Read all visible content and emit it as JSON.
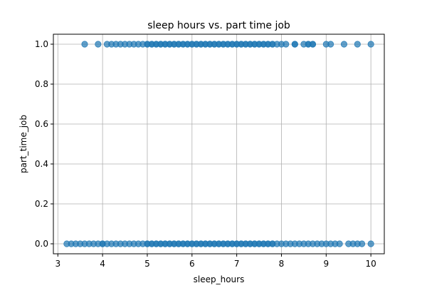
{
  "chart_data": {
    "type": "scatter",
    "title": "sleep hours vs. part time job",
    "xlabel": "sleep_hours",
    "ylabel": "part_time_job",
    "xlim": [
      2.9,
      10.3
    ],
    "ylim": [
      -0.05,
      1.05
    ],
    "xticks": [
      "3",
      "4",
      "5",
      "6",
      "7",
      "8",
      "9",
      "10"
    ],
    "yticks": [
      "0.0",
      "0.2",
      "0.4",
      "0.6",
      "0.8",
      "1.0"
    ],
    "grid": true,
    "marker_color": "#1f77b4",
    "series": [
      {
        "x": [
          3.6,
          3.9,
          4.1,
          4.2,
          4.3,
          4.4,
          4.5,
          4.6,
          4.7,
          4.8,
          4.9,
          5.0,
          5.0,
          5.1,
          5.1,
          5.2,
          5.2,
          5.3,
          5.3,
          5.4,
          5.4,
          5.5,
          5.5,
          5.6,
          5.6,
          5.7,
          5.7,
          5.8,
          5.8,
          5.9,
          5.9,
          6.0,
          6.0,
          6.1,
          6.1,
          6.2,
          6.2,
          6.3,
          6.3,
          6.4,
          6.4,
          6.5,
          6.5,
          6.6,
          6.6,
          6.7,
          6.7,
          6.8,
          6.8,
          6.9,
          6.9,
          7.0,
          7.0,
          7.1,
          7.1,
          7.2,
          7.2,
          7.3,
          7.3,
          7.4,
          7.4,
          7.5,
          7.5,
          7.6,
          7.6,
          7.7,
          7.7,
          7.8,
          7.8,
          7.9,
          8.0,
          8.1,
          8.3,
          8.3,
          8.5,
          8.6,
          8.6,
          8.7,
          8.7,
          9.0,
          9.1,
          9.4,
          9.7,
          10.0
        ],
        "y": [
          1,
          1,
          1,
          1,
          1,
          1,
          1,
          1,
          1,
          1,
          1,
          1,
          1,
          1,
          1,
          1,
          1,
          1,
          1,
          1,
          1,
          1,
          1,
          1,
          1,
          1,
          1,
          1,
          1,
          1,
          1,
          1,
          1,
          1,
          1,
          1,
          1,
          1,
          1,
          1,
          1,
          1,
          1,
          1,
          1,
          1,
          1,
          1,
          1,
          1,
          1,
          1,
          1,
          1,
          1,
          1,
          1,
          1,
          1,
          1,
          1,
          1,
          1,
          1,
          1,
          1,
          1,
          1,
          1,
          1,
          1,
          1,
          1,
          1,
          1,
          1,
          1,
          1,
          1,
          1,
          1,
          1,
          1,
          1
        ]
      },
      {
        "x": [
          3.2,
          3.3,
          3.4,
          3.5,
          3.6,
          3.7,
          3.8,
          3.9,
          4.0,
          4.0,
          4.1,
          4.2,
          4.3,
          4.4,
          4.5,
          4.6,
          4.7,
          4.8,
          4.9,
          5.0,
          5.0,
          5.1,
          5.1,
          5.2,
          5.2,
          5.3,
          5.3,
          5.4,
          5.4,
          5.5,
          5.5,
          5.6,
          5.6,
          5.7,
          5.7,
          5.8,
          5.8,
          5.9,
          5.9,
          6.0,
          6.0,
          6.1,
          6.1,
          6.2,
          6.2,
          6.3,
          6.3,
          6.4,
          6.4,
          6.5,
          6.5,
          6.6,
          6.6,
          6.7,
          6.7,
          6.8,
          6.8,
          6.9,
          6.9,
          7.0,
          7.0,
          7.1,
          7.1,
          7.2,
          7.2,
          7.3,
          7.3,
          7.4,
          7.4,
          7.5,
          7.5,
          7.6,
          7.6,
          7.7,
          7.7,
          7.8,
          7.8,
          7.9,
          8.0,
          8.1,
          8.2,
          8.3,
          8.4,
          8.5,
          8.6,
          8.7,
          8.8,
          8.9,
          9.0,
          9.1,
          9.2,
          9.3,
          9.5,
          9.6,
          9.7,
          9.8,
          10.0
        ],
        "y": [
          0,
          0,
          0,
          0,
          0,
          0,
          0,
          0,
          0,
          0,
          0,
          0,
          0,
          0,
          0,
          0,
          0,
          0,
          0,
          0,
          0,
          0,
          0,
          0,
          0,
          0,
          0,
          0,
          0,
          0,
          0,
          0,
          0,
          0,
          0,
          0,
          0,
          0,
          0,
          0,
          0,
          0,
          0,
          0,
          0,
          0,
          0,
          0,
          0,
          0,
          0,
          0,
          0,
          0,
          0,
          0,
          0,
          0,
          0,
          0,
          0,
          0,
          0,
          0,
          0,
          0,
          0,
          0,
          0,
          0,
          0,
          0,
          0,
          0,
          0,
          0,
          0,
          0,
          0,
          0,
          0,
          0,
          0,
          0,
          0,
          0,
          0,
          0,
          0,
          0,
          0,
          0,
          0,
          0,
          0,
          0,
          0
        ]
      }
    ]
  }
}
